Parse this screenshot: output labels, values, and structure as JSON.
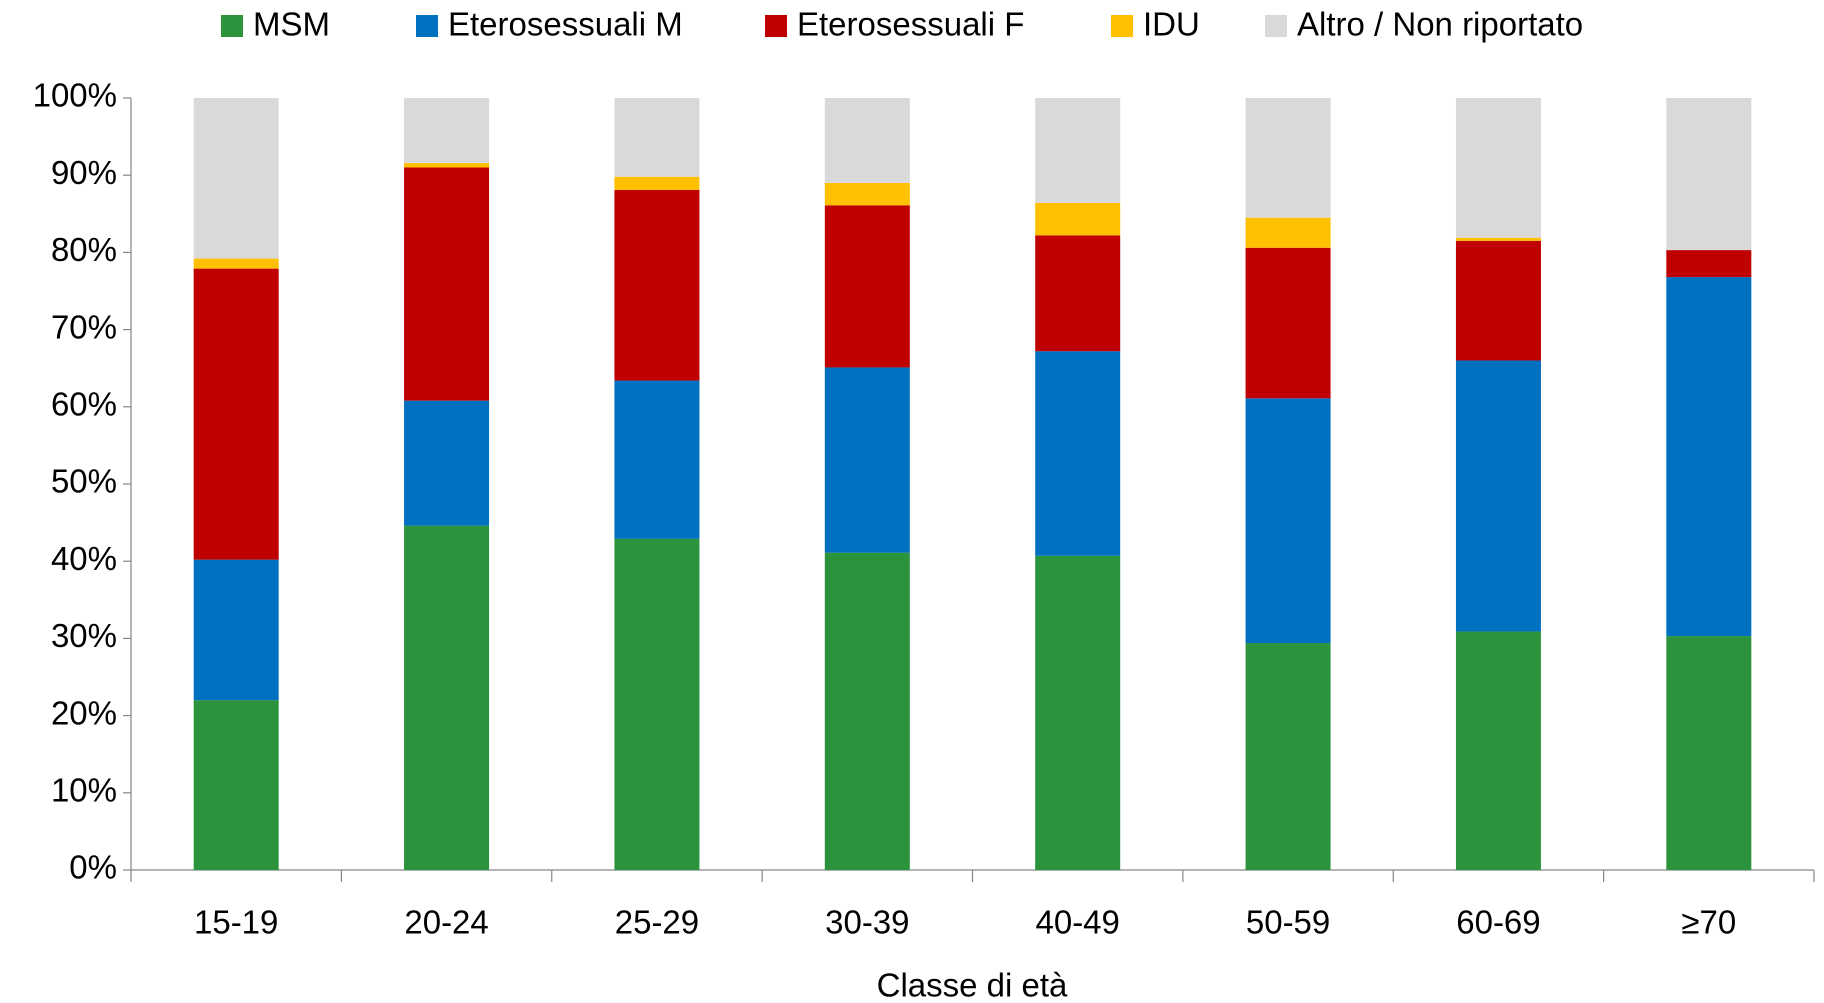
{
  "chart_data": {
    "type": "stacked_bar",
    "x_label": "Classe di età",
    "categories": [
      "15-19",
      "20-24",
      "25-29",
      "30-39",
      "40-49",
      "50-59",
      "60-69",
      "≥70"
    ],
    "series": [
      {
        "name": "MSM",
        "color": "#2a933b",
        "values": [
          22.0,
          44.6,
          42.9,
          41.1,
          40.7,
          29.4,
          30.9,
          30.3
        ]
      },
      {
        "name": "Eterosessuali M",
        "color": "#0070c0",
        "values": [
          18.2,
          16.2,
          20.5,
          24.0,
          26.5,
          31.7,
          35.1,
          46.5
        ]
      },
      {
        "name": "Eterosessuali F",
        "color": "#c00000",
        "values": [
          37.7,
          30.2,
          24.7,
          21.0,
          15.0,
          19.5,
          15.5,
          3.5
        ]
      },
      {
        "name": "IDU",
        "color": "#ffc000",
        "values": [
          1.3,
          0.6,
          1.7,
          2.9,
          4.2,
          3.9,
          0.4,
          0
        ]
      },
      {
        "name": "Altro / Non riportato",
        "color": "#d9d9d9",
        "values": [
          20.8,
          8.4,
          10.2,
          11.0,
          13.6,
          15.5,
          18.1,
          19.7
        ]
      }
    ],
    "ylim": [
      0,
      100
    ],
    "yticks": [
      {
        "value": 0,
        "label": "0%"
      },
      {
        "value": 10,
        "label": "10%"
      },
      {
        "value": 20,
        "label": "20%"
      },
      {
        "value": 30,
        "label": "30%"
      },
      {
        "value": 40,
        "label": "40%"
      },
      {
        "value": 50,
        "label": "50%"
      },
      {
        "value": 60,
        "label": "60%"
      },
      {
        "value": 70,
        "label": "70%"
      },
      {
        "value": 80,
        "label": "80%"
      },
      {
        "value": 90,
        "label": "90%"
      },
      {
        "value": 100,
        "label": "100%"
      }
    ],
    "legend": "top"
  }
}
